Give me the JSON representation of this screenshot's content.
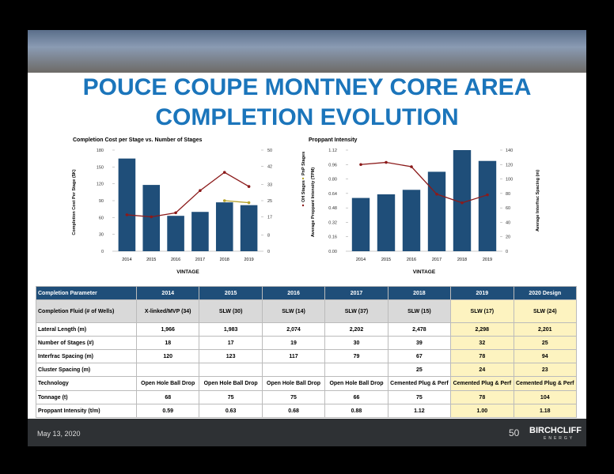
{
  "header": {
    "title_line1": "POUCE COUPE MONTNEY CORE AREA",
    "title_line2": "COMPLETION EVOLUTION"
  },
  "chart_data": [
    {
      "type": "bar",
      "title": "Completion Cost per Stage vs. Number of Stages",
      "xlabel": "VINTAGE",
      "ylabel": "Completion Cost Per Stage ($K)",
      "categories": [
        "2014",
        "2015",
        "2016",
        "2017",
        "2018",
        "2019"
      ],
      "ylim": [
        0,
        180
      ],
      "yticks": [
        0,
        30,
        60,
        90,
        120,
        150,
        180
      ],
      "y2lim": [
        0,
        50
      ],
      "y2ticks": [
        0,
        8,
        17,
        25,
        33,
        42,
        50
      ],
      "series": [
        {
          "name": "Completion Cost Per Stage ($K)",
          "type": "bar",
          "color": "#1f4e79",
          "values": [
            165,
            118,
            63,
            70,
            87,
            82
          ]
        },
        {
          "name": "OH Stages",
          "type": "line",
          "axis": "y2",
          "color": "#8b1a1a",
          "values": [
            18,
            17,
            19,
            30,
            39,
            32
          ]
        },
        {
          "name": "PnP Stages",
          "type": "line",
          "axis": "y2",
          "color": "#b5a22a",
          "values": [
            null,
            null,
            null,
            null,
            25,
            24
          ]
        }
      ]
    },
    {
      "type": "bar",
      "title": "Proppant Intensity",
      "xlabel": "VINTAGE",
      "ylabel": "Average Proppant Intensity (TPM)",
      "y2label": "Average Interfrac Spacing (m)",
      "categories": [
        "2014",
        "2015",
        "2016",
        "2017",
        "2018",
        "2019"
      ],
      "ylim": [
        0,
        1.12
      ],
      "yticks": [
        {
          "value": 0,
          "label": "0.00"
        },
        0.16,
        0.32,
        0.48,
        0.64,
        {
          "value": 0.8,
          "label": "0.80"
        },
        0.96,
        1.12
      ],
      "y2lim": [
        0,
        140
      ],
      "y2ticks": [
        0,
        20,
        40,
        60,
        80,
        100,
        120,
        140
      ],
      "series": [
        {
          "name": "Average Proppant Intensity (TPM)",
          "type": "bar",
          "color": "#1f4e79",
          "values": [
            0.59,
            0.63,
            0.68,
            0.88,
            1.12,
            1.0
          ]
        },
        {
          "name": "Average Interfrac Spacing (m)",
          "type": "line",
          "axis": "y2",
          "color": "#8b1a1a",
          "values": [
            120,
            123,
            117,
            79,
            67,
            78
          ]
        }
      ]
    }
  ],
  "table": {
    "header": [
      "Completion Parameter",
      "2014",
      "2015",
      "2016",
      "2017",
      "2018",
      "2019",
      "2020 Design"
    ],
    "rows": [
      [
        "Completion Fluid (# of Wells)",
        "X-linked/MVP (34)",
        "SLW (30)",
        "SLW (14)",
        "SLW (37)",
        "SLW (15)",
        "SLW (17)",
        "SLW (24)"
      ],
      [
        "Lateral Length (m)",
        "1,966",
        "1,983",
        "2,074",
        "2,202",
        "2,478",
        "2,298",
        "2,201"
      ],
      [
        "Number of Stages (#)",
        "18",
        "17",
        "19",
        "30",
        "39",
        "32",
        "25"
      ],
      [
        "Interfrac Spacing (m)",
        "120",
        "123",
        "117",
        "79",
        "67",
        "78",
        "94"
      ],
      [
        "Cluster Spacing (m)",
        null,
        null,
        null,
        null,
        "25",
        "24",
        "23"
      ],
      [
        "Technology",
        "Open Hole Ball Drop",
        "Open Hole Ball Drop",
        "Open Hole Ball Drop",
        "Open Hole Ball Drop",
        "Cemented Plug & Perf",
        "Cemented Plug & Perf",
        "Cemented Plug & Perf"
      ],
      [
        "Tonnage (t)",
        "68",
        "75",
        "75",
        "66",
        "75",
        "78",
        "104"
      ],
      [
        "Proppant Intensity (t/m)",
        "0.59",
        "0.63",
        "0.68",
        "0.88",
        "1.12",
        "1.00",
        "1.18"
      ]
    ]
  },
  "footer": {
    "date": "May 13, 2020",
    "page": "50",
    "logo": "BIRCHCLIFF",
    "logo_sub": "ENERGY"
  }
}
